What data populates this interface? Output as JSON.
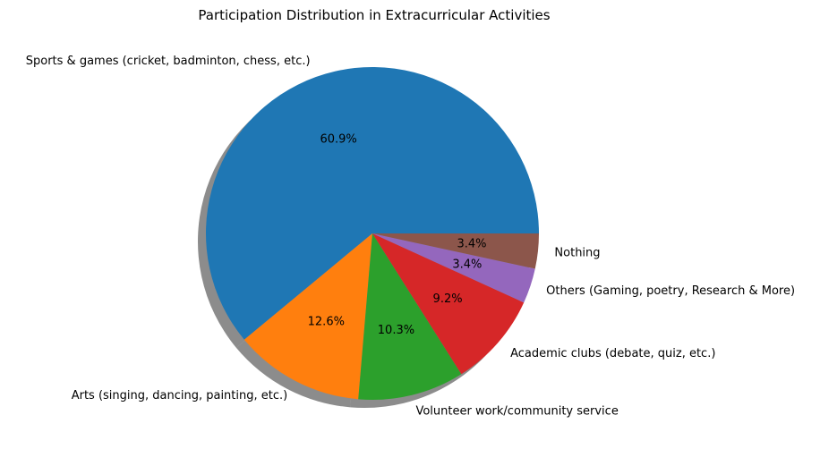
{
  "chart_data": {
    "type": "pie",
    "title": "Participation Distribution in Extracurricular Activities",
    "shadow": true,
    "start_angle_deg": 0,
    "direction": "counterclockwise",
    "slices": [
      {
        "label": "Sports & games (cricket, badminton, chess, etc.)",
        "value": 60.9,
        "pct_label": "60.9%",
        "color": "#1f77b4"
      },
      {
        "label": "Arts (singing, dancing, painting, etc.)",
        "value": 12.6,
        "pct_label": "12.6%",
        "color": "#ff7f0e"
      },
      {
        "label": "Volunteer work/community service",
        "value": 10.3,
        "pct_label": "10.3%",
        "color": "#2ca02c"
      },
      {
        "label": "Academic clubs (debate, quiz, etc.)",
        "value": 9.2,
        "pct_label": "9.2%",
        "color": "#d62728"
      },
      {
        "label": "Others (Gaming, poetry, Research & More)",
        "value": 3.4,
        "pct_label": "3.4%",
        "color": "#9467bd"
      },
      {
        "label": "Nothing",
        "value": 3.4,
        "pct_label": "3.4%",
        "color": "#8c564b"
      }
    ]
  }
}
